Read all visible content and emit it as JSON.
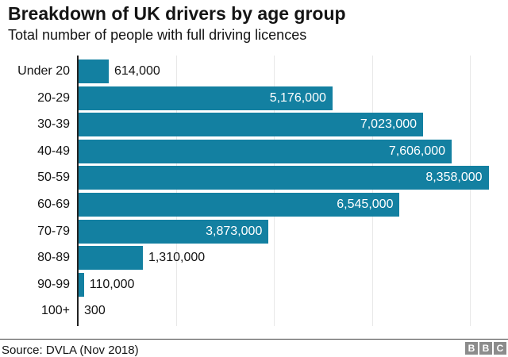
{
  "header": {
    "title": "Breakdown of UK drivers by age group",
    "subtitle": "Total number of people with full driving licences"
  },
  "chart_data": {
    "type": "bar",
    "orientation": "horizontal",
    "title": "Breakdown of UK drivers by age group",
    "subtitle": "Total number of people with full driving licences",
    "categories": [
      "Under 20",
      "20-29",
      "30-39",
      "40-49",
      "50-59",
      "60-69",
      "70-79",
      "80-89",
      "90-99",
      "100+"
    ],
    "values": [
      614000,
      5176000,
      7023000,
      7606000,
      8358000,
      6545000,
      3873000,
      1310000,
      110000,
      300
    ],
    "value_labels": [
      "614,000",
      "5,176,000",
      "7,023,000",
      "7,606,000",
      "8,358,000",
      "6,545,000",
      "3,873,000",
      "1,310,000",
      "110,000",
      "300"
    ],
    "label_inside": [
      false,
      true,
      true,
      true,
      true,
      true,
      true,
      false,
      false,
      false
    ],
    "xlim": [
      0,
      8770000
    ],
    "gridline_values": [
      2000000,
      4000000,
      6000000,
      8000000
    ],
    "grid": true,
    "legend": false,
    "bar_color": "#1380a1",
    "inside_label_color": "#ffffff",
    "outside_label_color": "#141414",
    "axis_color": "#222222",
    "gridline_color": "#e8e8e8"
  },
  "footer": {
    "source": "Source: DVLA (Nov 2018)",
    "logo_letters": [
      "B",
      "B",
      "C"
    ]
  }
}
